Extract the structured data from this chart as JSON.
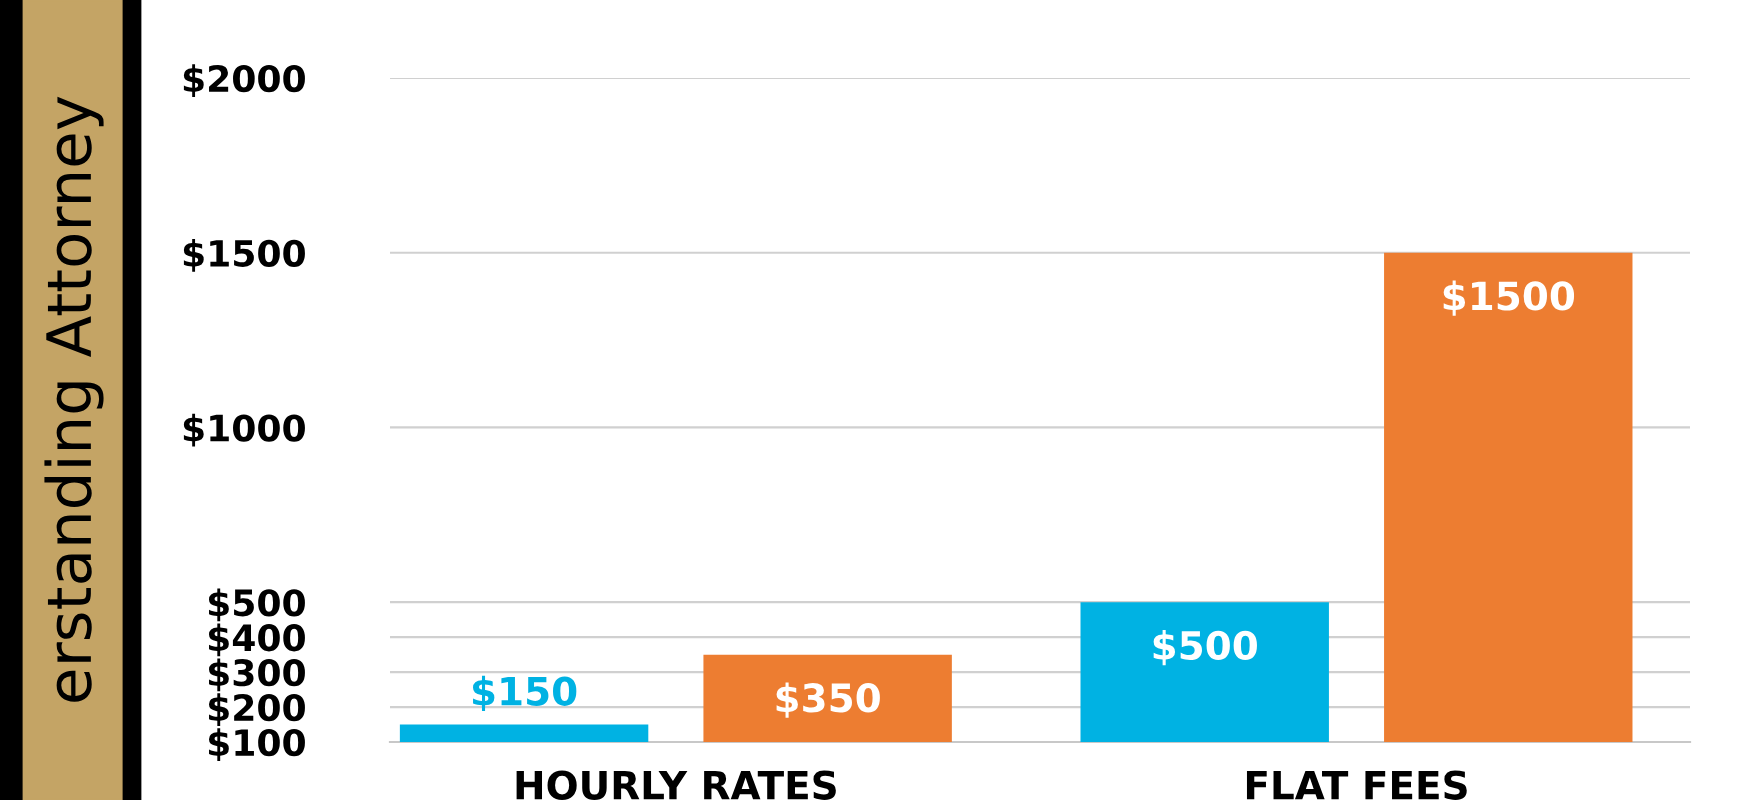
{
  "chart_data": {
    "type": "bar",
    "title": "erstanding Attorney",
    "categories": [
      "HOURLY RATES",
      "FLAT FEES"
    ],
    "series": [
      {
        "color": "#00b2e3",
        "values": [
          150,
          500
        ],
        "value_labels": [
          "$150",
          "$500"
        ]
      },
      {
        "color": "#ed7d31",
        "values": [
          350,
          1500
        ],
        "value_labels": [
          "$350",
          "$1500"
        ]
      }
    ],
    "ylim": [
      100,
      2000
    ],
    "yticks": [
      {
        "value": 100,
        "label": "$100"
      },
      {
        "value": 200,
        "label": "$200"
      },
      {
        "value": 300,
        "label": "$300"
      },
      {
        "value": 400,
        "label": "$400"
      },
      {
        "value": 500,
        "label": "$500"
      },
      {
        "value": 1000,
        "label": "$1000"
      },
      {
        "value": 1500,
        "label": "$1500"
      },
      {
        "value": 2000,
        "label": "$2000"
      }
    ],
    "grid": "y",
    "legend": false
  }
}
